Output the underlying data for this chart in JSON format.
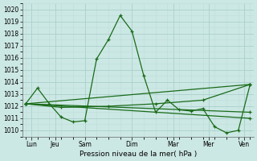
{
  "xlabel": "Pression niveau de la mer( hPa )",
  "bg_color": "#cce8e4",
  "grid_major_color": "#aacfcc",
  "grid_minor_color": "#c0ddd9",
  "line_color": "#1a6b1a",
  "ylim": [
    1009.5,
    1020.5
  ],
  "yticks": [
    1010,
    1011,
    1012,
    1013,
    1014,
    1015,
    1016,
    1017,
    1018,
    1019,
    1020
  ],
  "xlim": [
    -0.3,
    19.3
  ],
  "xtick_major_pos": [
    0.5,
    2.5,
    5.0,
    9.0,
    12.5,
    15.5,
    18.5
  ],
  "xtick_major_labels": [
    "Lun",
    "Jeu",
    "Sam",
    "Dim",
    "Mar",
    "Mer",
    "Ven"
  ],
  "main_x": [
    0,
    1,
    2,
    3,
    4,
    5,
    6,
    7,
    8,
    9,
    10,
    11,
    12,
    13,
    14,
    15,
    16,
    17,
    18,
    19
  ],
  "main_y": [
    1012.2,
    1013.5,
    1012.2,
    1011.1,
    1010.7,
    1010.8,
    1015.9,
    1017.5,
    1019.5,
    1018.2,
    1014.5,
    1011.5,
    1012.5,
    1011.7,
    1011.6,
    1011.8,
    1010.3,
    1009.8,
    1010.0,
    1013.8
  ],
  "line1_x": [
    0,
    19
  ],
  "line1_y": [
    1012.2,
    1013.8
  ],
  "line2_x": [
    0,
    19
  ],
  "line2_y": [
    1012.2,
    1011.0
  ],
  "line3_x": [
    0,
    19
  ],
  "line3_y": [
    1012.2,
    1011.5
  ],
  "line4_x": [
    0,
    3,
    7,
    11,
    15,
    19
  ],
  "line4_y": [
    1012.2,
    1011.9,
    1012.0,
    1012.2,
    1012.5,
    1013.8
  ]
}
